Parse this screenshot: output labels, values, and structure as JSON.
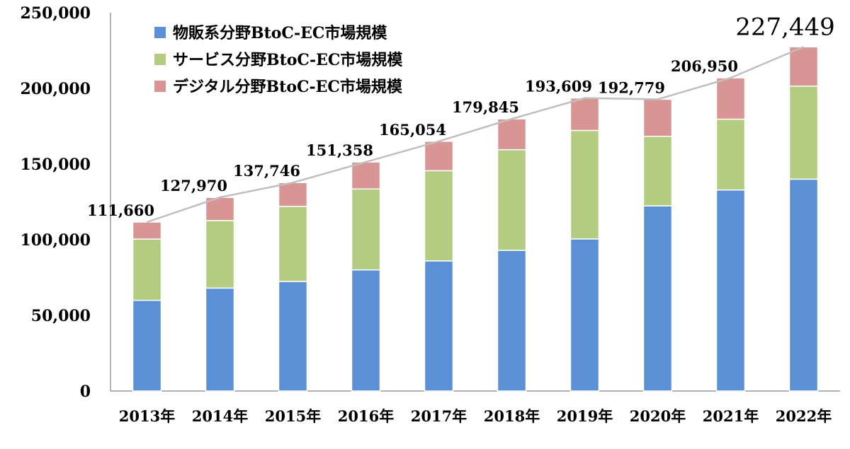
{
  "chart_data": {
    "type": "bar",
    "stacked": true,
    "categories": [
      "2013年",
      "2014年",
      "2015年",
      "2016年",
      "2017年",
      "2018年",
      "2019年",
      "2020年",
      "2021年",
      "2022年"
    ],
    "ylim": [
      0,
      250000
    ],
    "yticks": [
      0,
      50000,
      100000,
      150000,
      200000,
      250000
    ],
    "ytick_labels": [
      "0",
      "50,000",
      "100,000",
      "150,000",
      "200,000",
      "250,000"
    ],
    "grid": false,
    "legend_position": "top-left",
    "series": [
      {
        "name": "物販系分野BtoC-EC市場規模",
        "color": "#5b8fd6",
        "values": [
          59931,
          68042,
          72398,
          80043,
          86008,
          92992,
          100515,
          122333,
          132865,
          139997
        ]
      },
      {
        "name": "サービス分野BtoC-EC市場規模",
        "color": "#b3cc82",
        "values": [
          40500,
          44600,
          49600,
          53500,
          59600,
          66500,
          71700,
          46000,
          46800,
          61500
        ]
      },
      {
        "name": "デジタル分野BtoC-EC市場規模",
        "color": "#d99594",
        "values": [
          11229,
          15328,
          15748,
          17815,
          19446,
          20353,
          21394,
          24446,
          27285,
          25952
        ]
      }
    ],
    "totals": [
      111660,
      127970,
      137746,
      151358,
      165054,
      179845,
      193609,
      192779,
      206950,
      227449
    ],
    "total_labels": [
      "111,660",
      "127,970",
      "137,746",
      "151,358",
      "165,054",
      "179,845",
      "193,609",
      "192,779",
      "206,950",
      "227,449"
    ],
    "total_line_color": "#bfbfbf"
  }
}
